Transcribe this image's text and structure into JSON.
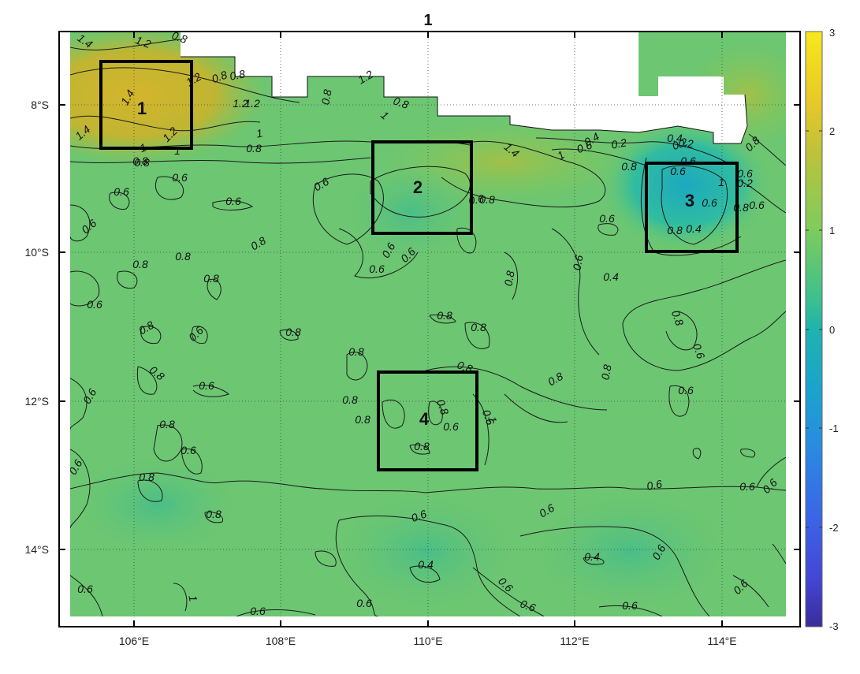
{
  "map": {
    "title": "1",
    "lon_ticks": [
      "106°E",
      "108°E",
      "110°E",
      "112°E",
      "114°E"
    ],
    "lat_ticks": [
      "8°S",
      "10°S",
      "12°S",
      "14°S"
    ],
    "colorbar": {
      "ticks": [
        "3",
        "2",
        "1",
        "0",
        "-1",
        "-2",
        "-3"
      ],
      "colors": [
        "#f5e61e",
        "#c8c01e",
        "#7dce5a",
        "#1ab4b0",
        "#2a8ce0",
        "#3c5ae0",
        "#3a2e9e"
      ]
    },
    "land_color": "#ffffff",
    "boxes": [
      {
        "label": "1"
      },
      {
        "label": "2"
      },
      {
        "label": "3"
      },
      {
        "label": "4"
      }
    ],
    "contour_labels": [
      "1.4",
      "1.2",
      "1.4",
      "0.8",
      "1.2",
      "0.8",
      "0.8",
      "1",
      "1",
      "1",
      "0.8",
      "0.8",
      "1.4",
      "1",
      "1.2",
      "1.4",
      "1.2",
      "0.8",
      "1.2",
      "1.2",
      "0.8",
      "1",
      "0.4",
      "0.2",
      "0.6",
      "0.2",
      "0.4",
      "0.2",
      "0.8",
      "0.8",
      "0.6",
      "0.6",
      "0.6",
      "0.6",
      "0.6",
      "0.6",
      "0.8",
      "0.6",
      "0.6",
      "0.6",
      "0.8",
      "0.8",
      "0.8",
      "0.8",
      "0.8",
      "0.6",
      "0.8",
      "0.6",
      "0.8",
      "0.8",
      "0.8",
      "0.8",
      "0.6",
      "0.8",
      "0.6",
      "0.8",
      "0.8",
      "0.8",
      "0.8",
      "0.8",
      "0.6",
      "0.8",
      "0.8",
      "0.6",
      "0.8",
      "0.6",
      "0.8",
      "0.6",
      "0.8",
      "0.6",
      "0.8",
      "0.8",
      "0.6",
      "0.6",
      "0.6",
      "0.6",
      "0.6",
      "0.6",
      "0.6",
      "0.4",
      "0.4",
      "0.6",
      "0.6",
      "0.6",
      "0.6",
      "0.6",
      "0.6",
      "0.6",
      "0.6",
      "1",
      "1",
      "0.6",
      "0.4",
      "1",
      "0.2",
      "0.6",
      "0.6",
      "0.8",
      "0.4",
      "0.8",
      "0.6",
      "0.6",
      "0.6"
    ]
  }
}
